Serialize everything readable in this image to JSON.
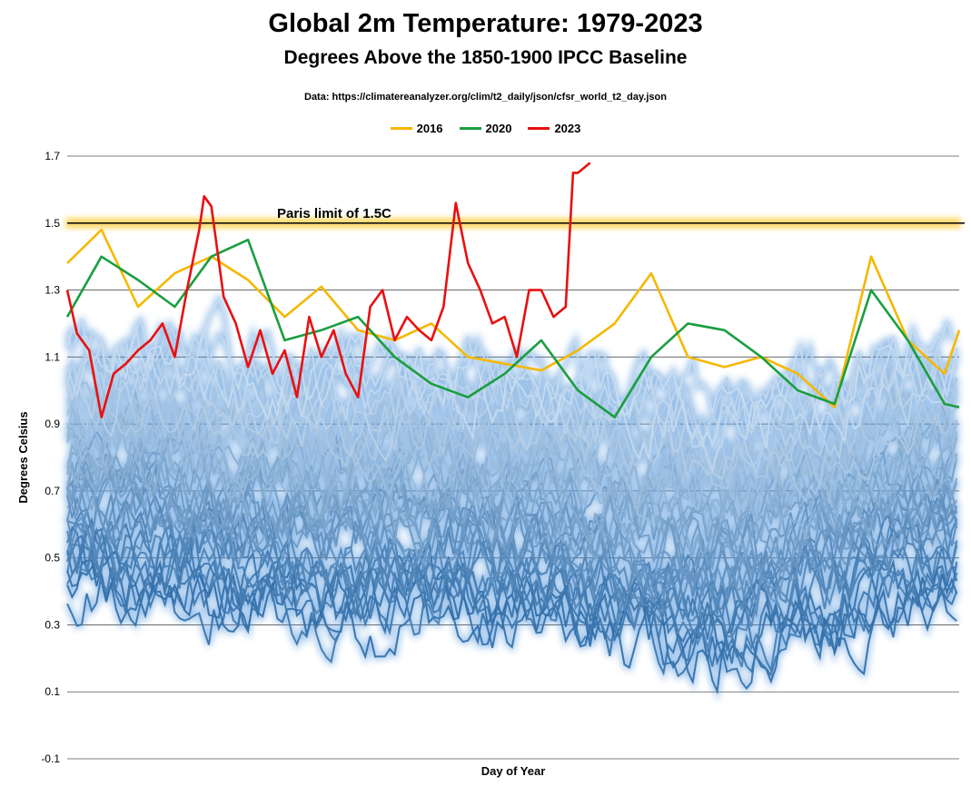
{
  "chart_data": {
    "type": "line",
    "title": "Global 2m Temperature: 1979-2023",
    "subtitle": "Degrees Above the 1850-1900 IPCC Baseline",
    "source": "Data:  https://climatereanalyzer.org/clim/t2_daily/json/cfsr_world_t2_day.json",
    "xlabel": "Day of Year",
    "ylabel": "Degrees Celsius",
    "xlim": [
      1,
      366
    ],
    "ylim": [
      -0.1,
      1.7
    ],
    "yticks": [
      "1.7",
      "1.5",
      "1.3",
      "1.1",
      "0.9",
      "0.7",
      "0.5",
      "0.3",
      "0.1",
      "-0.1"
    ],
    "ytick_values": [
      1.7,
      1.5,
      1.3,
      1.1,
      0.9,
      0.7,
      0.5,
      0.3,
      0.1,
      -0.1
    ],
    "reference_line": {
      "label": "Paris limit of 1.5C",
      "value": 1.5
    },
    "legend": [
      {
        "name": "2016",
        "color": "#f5b800"
      },
      {
        "name": "2020",
        "color": "#1a9e3f"
      },
      {
        "name": "2023",
        "color": "#e81010"
      }
    ],
    "background_years": {
      "first": 1979,
      "last": 2022,
      "note": "other years drawn in shades of blue",
      "color_range": [
        "#2b6aa6",
        "#c9ddf1"
      ]
    },
    "series": [
      {
        "name": "2016",
        "color": "#f5b800",
        "x": [
          1,
          15,
          30,
          45,
          60,
          75,
          90,
          105,
          120,
          135,
          150,
          165,
          180,
          195,
          210,
          225,
          240,
          255,
          270,
          285,
          300,
          315,
          330,
          345,
          360,
          366
        ],
        "values": [
          1.38,
          1.48,
          1.25,
          1.35,
          1.4,
          1.33,
          1.22,
          1.31,
          1.18,
          1.15,
          1.2,
          1.1,
          1.08,
          1.06,
          1.12,
          1.2,
          1.35,
          1.1,
          1.07,
          1.1,
          1.05,
          0.95,
          1.4,
          1.15,
          1.05,
          1.18
        ]
      },
      {
        "name": "2020",
        "color": "#1a9e3f",
        "x": [
          1,
          15,
          30,
          45,
          60,
          75,
          90,
          105,
          120,
          135,
          150,
          165,
          180,
          195,
          210,
          225,
          240,
          255,
          270,
          285,
          300,
          315,
          330,
          345,
          360,
          366
        ],
        "values": [
          1.22,
          1.4,
          1.33,
          1.25,
          1.4,
          1.45,
          1.15,
          1.18,
          1.22,
          1.1,
          1.02,
          0.98,
          1.05,
          1.15,
          1.0,
          0.92,
          1.1,
          1.2,
          1.18,
          1.1,
          1.0,
          0.96,
          1.3,
          1.15,
          0.96,
          0.95
        ]
      },
      {
        "name": "2023",
        "color": "#e81010",
        "x": [
          1,
          5,
          10,
          15,
          20,
          25,
          30,
          35,
          40,
          45,
          50,
          55,
          57,
          60,
          65,
          70,
          75,
          80,
          85,
          90,
          95,
          100,
          105,
          110,
          115,
          120,
          125,
          130,
          135,
          140,
          145,
          150,
          155,
          160,
          165,
          170,
          175,
          180,
          185,
          190,
          195,
          200,
          205,
          208,
          210,
          215
        ],
        "values": [
          1.3,
          1.17,
          1.12,
          0.92,
          1.05,
          1.08,
          1.12,
          1.15,
          1.2,
          1.1,
          1.3,
          1.48,
          1.58,
          1.55,
          1.28,
          1.2,
          1.07,
          1.18,
          1.05,
          1.12,
          0.98,
          1.22,
          1.1,
          1.18,
          1.05,
          0.98,
          1.25,
          1.3,
          1.15,
          1.22,
          1.18,
          1.15,
          1.25,
          1.56,
          1.38,
          1.3,
          1.2,
          1.22,
          1.1,
          1.3,
          1.3,
          1.22,
          1.25,
          1.65,
          1.65,
          1.68
        ]
      }
    ]
  }
}
